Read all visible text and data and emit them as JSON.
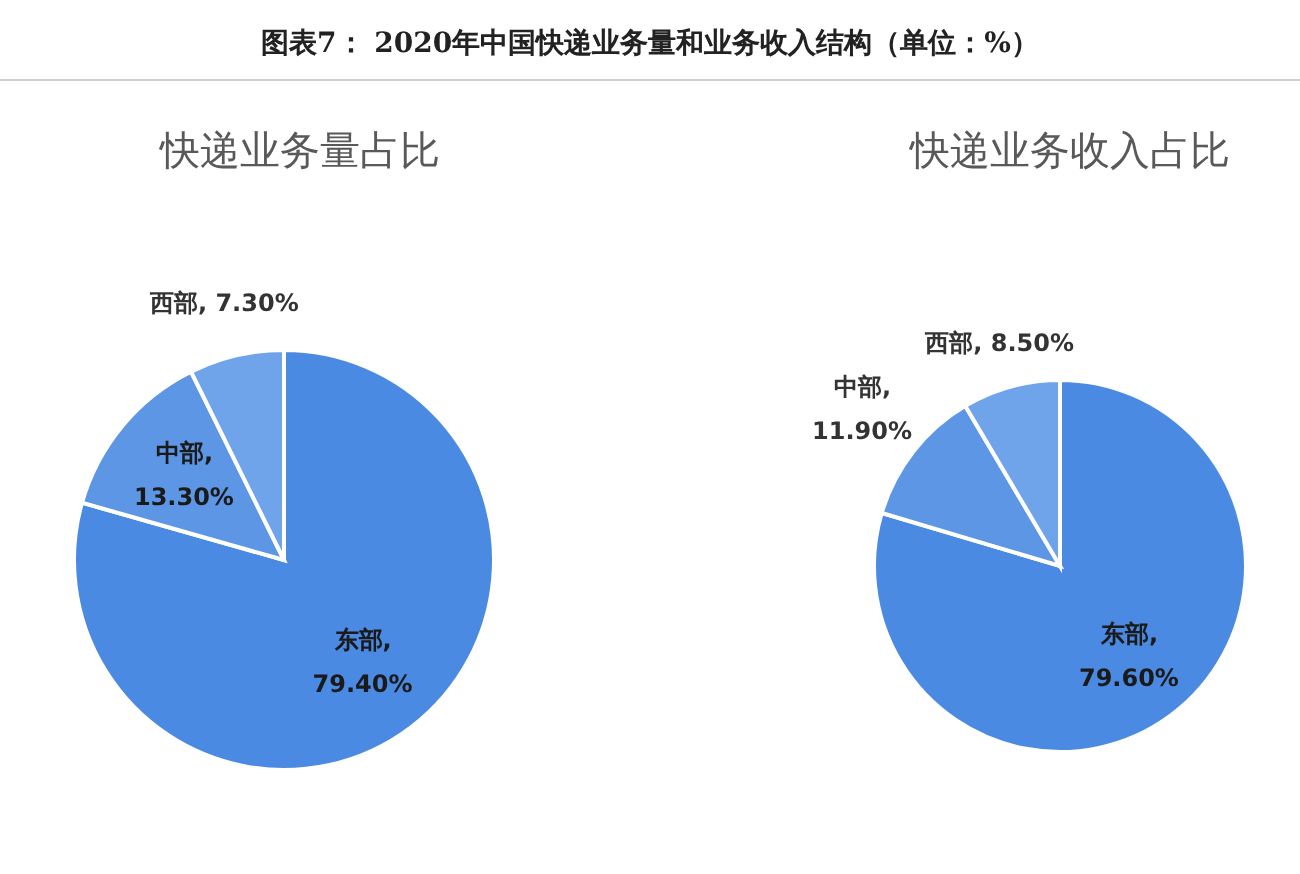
{
  "chart_data": [
    {
      "type": "pie",
      "title": "快递业务量占比",
      "annotations": [
        "图表7： 2020年中国快递业务量和业务收入结构（单位：%）"
      ],
      "categories": [
        "东部",
        "中部",
        "西部"
      ],
      "values": [
        79.4,
        13.3,
        7.3
      ],
      "value_labels": [
        ", 79.40%",
        ", 13.30%",
        ", 7.30%"
      ],
      "colors": [
        "#4a8ae3",
        "#5c96e4",
        "#6fa3ea"
      ]
    },
    {
      "type": "pie",
      "title": "快递业务收入占比",
      "categories": [
        "东部",
        "中部",
        "西部"
      ],
      "values": [
        79.6,
        11.9,
        8.5
      ],
      "value_labels": [
        ", 79.60%",
        ", 11.90%",
        ", 8.50%"
      ],
      "colors": [
        "#4a8ae3",
        "#5c96e4",
        "#6fa3ea"
      ]
    }
  ]
}
